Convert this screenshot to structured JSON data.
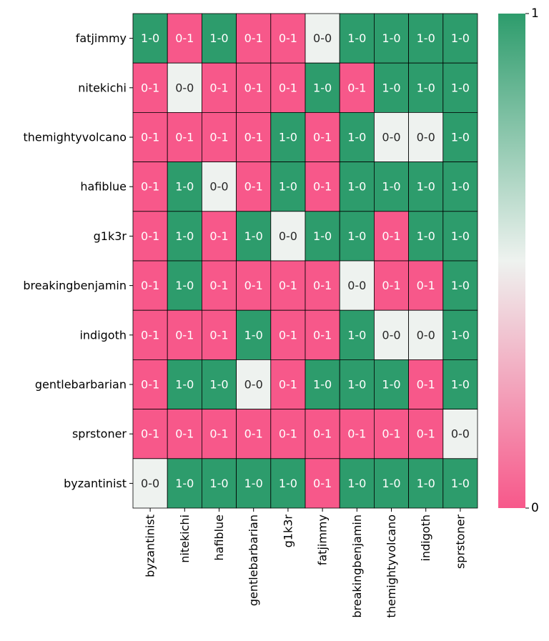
{
  "chart_data": {
    "type": "heatmap",
    "title": "",
    "xlabel": "",
    "ylabel": "",
    "x_labels": [
      "byzantinist",
      "nitekichi",
      "hafiblue",
      "gentlebarbarian",
      "g1k3r",
      "fatjimmy",
      "breakingbenjamin",
      "themightyvolcano",
      "indigoth",
      "sprstoner"
    ],
    "y_labels": [
      "fatjimmy",
      "nitekichi",
      "themightyvolcano",
      "hafiblue",
      "g1k3r",
      "breakingbenjamin",
      "indigoth",
      "gentlebarbarian",
      "sprstoner",
      "byzantinist"
    ],
    "values": [
      [
        1,
        0,
        1,
        0,
        0,
        0.5,
        1,
        1,
        1,
        1
      ],
      [
        0,
        0.5,
        0,
        0,
        0,
        1,
        0,
        1,
        1,
        1
      ],
      [
        0,
        0,
        0,
        0,
        1,
        0,
        1,
        0.5,
        0.5,
        1
      ],
      [
        0,
        1,
        0.5,
        0,
        1,
        0,
        1,
        1,
        1,
        1
      ],
      [
        0,
        1,
        0,
        1,
        0.5,
        1,
        1,
        0,
        1,
        1
      ],
      [
        0,
        1,
        0,
        0,
        0,
        0,
        0.5,
        0,
        0,
        1
      ],
      [
        0,
        0,
        0,
        1,
        0,
        0,
        1,
        0.5,
        0.5,
        1
      ],
      [
        0,
        1,
        1,
        0.5,
        0,
        1,
        1,
        1,
        0,
        1
      ],
      [
        0,
        0,
        0,
        0,
        0,
        0,
        0,
        0,
        0,
        0.5
      ],
      [
        0.5,
        1,
        1,
        1,
        1,
        0,
        1,
        1,
        1,
        1
      ]
    ],
    "annotations": [
      [
        "1-0",
        "0-1",
        "1-0",
        "0-1",
        "0-1",
        "0-0",
        "1-0",
        "1-0",
        "1-0",
        "1-0"
      ],
      [
        "0-1",
        "0-0",
        "0-1",
        "0-1",
        "0-1",
        "1-0",
        "0-1",
        "1-0",
        "1-0",
        "1-0"
      ],
      [
        "0-1",
        "0-1",
        "0-1",
        "0-1",
        "1-0",
        "0-1",
        "1-0",
        "0-0",
        "0-0",
        "1-0"
      ],
      [
        "0-1",
        "1-0",
        "0-0",
        "0-1",
        "1-0",
        "0-1",
        "1-0",
        "1-0",
        "1-0",
        "1-0"
      ],
      [
        "0-1",
        "1-0",
        "0-1",
        "1-0",
        "0-0",
        "1-0",
        "1-0",
        "0-1",
        "1-0",
        "1-0"
      ],
      [
        "0-1",
        "1-0",
        "0-1",
        "0-1",
        "0-1",
        "0-1",
        "0-0",
        "0-1",
        "0-1",
        "1-0"
      ],
      [
        "0-1",
        "0-1",
        "0-1",
        "1-0",
        "0-1",
        "0-1",
        "1-0",
        "0-0",
        "0-0",
        "1-0"
      ],
      [
        "0-1",
        "1-0",
        "1-0",
        "0-0",
        "0-1",
        "1-0",
        "1-0",
        "1-0",
        "0-1",
        "1-0"
      ],
      [
        "0-1",
        "0-1",
        "0-1",
        "0-1",
        "0-1",
        "0-1",
        "0-1",
        "0-1",
        "0-1",
        "0-0"
      ],
      [
        "0-0",
        "1-0",
        "1-0",
        "1-0",
        "1-0",
        "0-1",
        "1-0",
        "1-0",
        "1-0",
        "1-0"
      ]
    ],
    "vmin": 0,
    "vmax": 1,
    "colorbar": {
      "ticks": [
        "0",
        "1"
      ]
    },
    "colors": {
      "low": "#f7588a",
      "mid": "#eef2ef",
      "high": "#2d9c6c"
    },
    "annotation_colors": {
      "on_dark": "#ffffff",
      "on_light": "#262626"
    },
    "grid": false
  }
}
